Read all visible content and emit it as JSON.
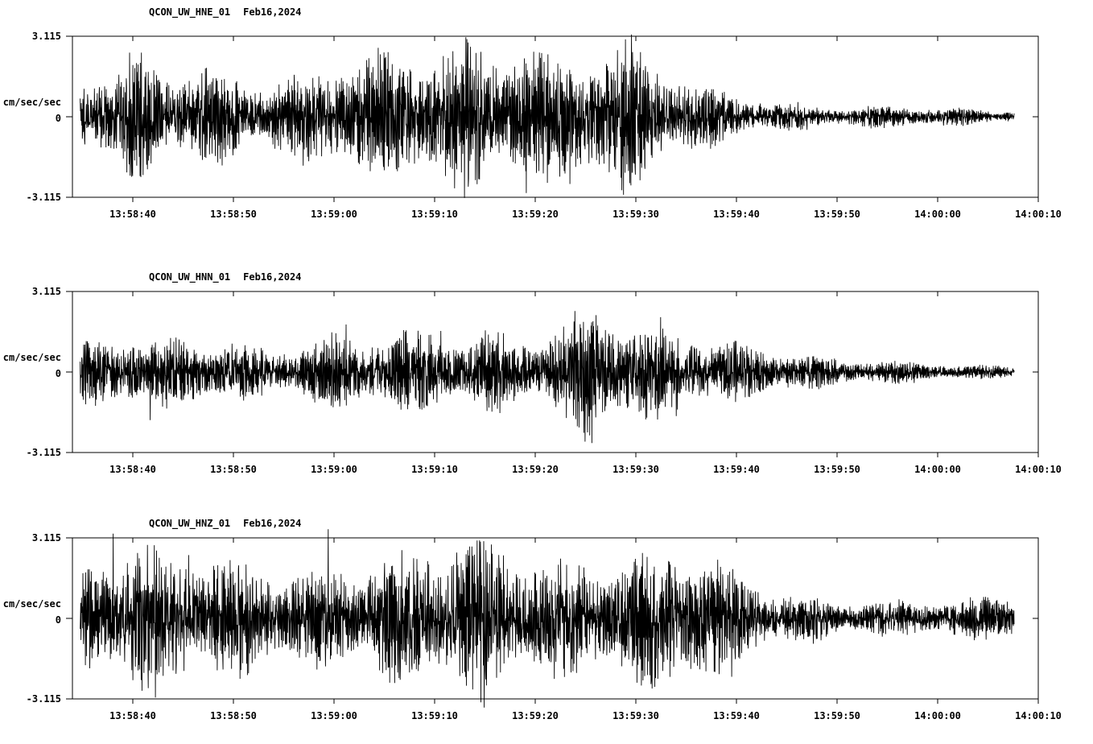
{
  "page": {
    "background": "#ffffff",
    "trace_color": "#000000",
    "text_color": "#000000"
  },
  "chart_data": [
    {
      "id": "hne",
      "type": "line",
      "title": "QCON_UW_HNE_01  Feb16,2024",
      "station": "QCON_UW_HNE_01",
      "date": "Feb16,2024",
      "ylabel": "cm/sec/sec",
      "ylim": [
        -3.115,
        3.115
      ],
      "ytick_labels": [
        "3.115",
        "0",
        "-3.115"
      ],
      "xticks": [
        "13:58:40",
        "13:58:50",
        "13:59:00",
        "13:59:10",
        "13:59:20",
        "13:59:30",
        "13:59:40",
        "13:59:50",
        "14:00:00",
        "14:00:10"
      ],
      "window_s": 96,
      "first_tick_offset_s": 6,
      "tick_step_s": 10,
      "trace_span": [
        0.008,
        0.975
      ],
      "seed": 101,
      "grid": false,
      "envelope": [
        [
          0.0,
          0.95
        ],
        [
          0.04,
          1.35
        ],
        [
          0.07,
          1.8
        ],
        [
          0.1,
          1.3
        ],
        [
          0.13,
          1.75
        ],
        [
          0.16,
          1.4
        ],
        [
          0.19,
          1.3
        ],
        [
          0.22,
          1.5
        ],
        [
          0.25,
          1.35
        ],
        [
          0.28,
          1.6
        ],
        [
          0.31,
          1.8
        ],
        [
          0.34,
          1.5
        ],
        [
          0.37,
          1.9
        ],
        [
          0.4,
          2.3
        ],
        [
          0.43,
          2.0
        ],
        [
          0.455,
          2.7
        ],
        [
          0.48,
          2.4
        ],
        [
          0.5,
          1.9
        ],
        [
          0.525,
          2.5
        ],
        [
          0.55,
          1.8
        ],
        [
          0.575,
          2.1
        ],
        [
          0.6,
          1.5
        ],
        [
          0.63,
          1.1
        ],
        [
          0.66,
          0.85
        ],
        [
          0.7,
          0.6
        ],
        [
          0.75,
          0.45
        ],
        [
          0.8,
          0.35
        ],
        [
          0.85,
          0.3
        ],
        [
          0.9,
          0.25
        ],
        [
          0.95,
          0.22
        ],
        [
          1.0,
          0.2
        ]
      ],
      "spikes": [
        {
          "t": 0.47,
          "amp": 2.95
        },
        {
          "t": 0.515,
          "amp": 2.6
        }
      ]
    },
    {
      "id": "hnn",
      "type": "line",
      "title": "QCON_UW_HNN_01  Feb16,2024",
      "station": "QCON_UW_HNN_01",
      "date": "Feb16,2024",
      "ylabel": "cm/sec/sec",
      "ylim": [
        -3.115,
        3.115
      ],
      "ytick_labels": [
        "3.115",
        "0",
        "-3.115"
      ],
      "xticks": [
        "13:58:40",
        "13:58:50",
        "13:59:00",
        "13:59:10",
        "13:59:20",
        "13:59:30",
        "13:59:40",
        "13:59:50",
        "14:00:00",
        "14:00:10"
      ],
      "window_s": 96,
      "first_tick_offset_s": 6,
      "tick_step_s": 10,
      "trace_span": [
        0.008,
        0.975
      ],
      "seed": 202,
      "grid": false,
      "envelope": [
        [
          0.0,
          0.75
        ],
        [
          0.04,
          1.05
        ],
        [
          0.08,
          0.85
        ],
        [
          0.12,
          1.15
        ],
        [
          0.16,
          1.0
        ],
        [
          0.2,
          0.85
        ],
        [
          0.24,
          0.95
        ],
        [
          0.28,
          1.05
        ],
        [
          0.32,
          0.9
        ],
        [
          0.36,
          1.15
        ],
        [
          0.4,
          1.05
        ],
        [
          0.44,
          1.35
        ],
        [
          0.48,
          1.25
        ],
        [
          0.52,
          1.55
        ],
        [
          0.535,
          2.3
        ],
        [
          0.55,
          1.6
        ],
        [
          0.58,
          1.3
        ],
        [
          0.61,
          1.15
        ],
        [
          0.64,
          1.05
        ],
        [
          0.68,
          0.95
        ],
        [
          0.72,
          0.8
        ],
        [
          0.76,
          0.6
        ],
        [
          0.8,
          0.45
        ],
        [
          0.85,
          0.32
        ],
        [
          0.9,
          0.22
        ],
        [
          0.95,
          0.18
        ],
        [
          1.0,
          0.15
        ]
      ],
      "spikes": [
        {
          "t": 0.538,
          "amp": 2.75
        }
      ]
    },
    {
      "id": "hnz",
      "type": "line",
      "title": "QCON_UW_HNZ_01  Feb16,2024",
      "station": "QCON_UW_HNZ_01",
      "date": "Feb16,2024",
      "ylabel": "cm/sec/sec",
      "ylim": [
        -3.115,
        3.115
      ],
      "ytick_labels": [
        "3.115",
        "0",
        "-3.115"
      ],
      "xticks": [
        "13:58:40",
        "13:58:50",
        "13:59:00",
        "13:59:10",
        "13:59:20",
        "13:59:30",
        "13:59:40",
        "13:59:50",
        "14:00:00",
        "14:00:10"
      ],
      "window_s": 96,
      "first_tick_offset_s": 6,
      "tick_step_s": 10,
      "trace_span": [
        0.008,
        0.975
      ],
      "seed": 303,
      "grid": false,
      "envelope": [
        [
          0.0,
          1.7
        ],
        [
          0.05,
          2.0
        ],
        [
          0.1,
          1.85
        ],
        [
          0.15,
          1.75
        ],
        [
          0.2,
          1.7
        ],
        [
          0.25,
          1.6
        ],
        [
          0.3,
          1.75
        ],
        [
          0.35,
          1.85
        ],
        [
          0.4,
          1.9
        ],
        [
          0.425,
          2.4
        ],
        [
          0.45,
          2.1
        ],
        [
          0.5,
          2.0
        ],
        [
          0.55,
          1.95
        ],
        [
          0.6,
          2.0
        ],
        [
          0.635,
          2.05
        ],
        [
          0.67,
          1.5
        ],
        [
          0.7,
          1.0
        ],
        [
          0.74,
          0.8
        ],
        [
          0.78,
          0.7
        ],
        [
          0.82,
          0.62
        ],
        [
          0.86,
          0.55
        ],
        [
          0.9,
          0.5
        ],
        [
          0.94,
          0.55
        ],
        [
          0.97,
          0.6
        ],
        [
          1.0,
          0.5
        ]
      ],
      "spikes": [
        {
          "t": 0.423,
          "amp": 3.25
        }
      ]
    }
  ]
}
